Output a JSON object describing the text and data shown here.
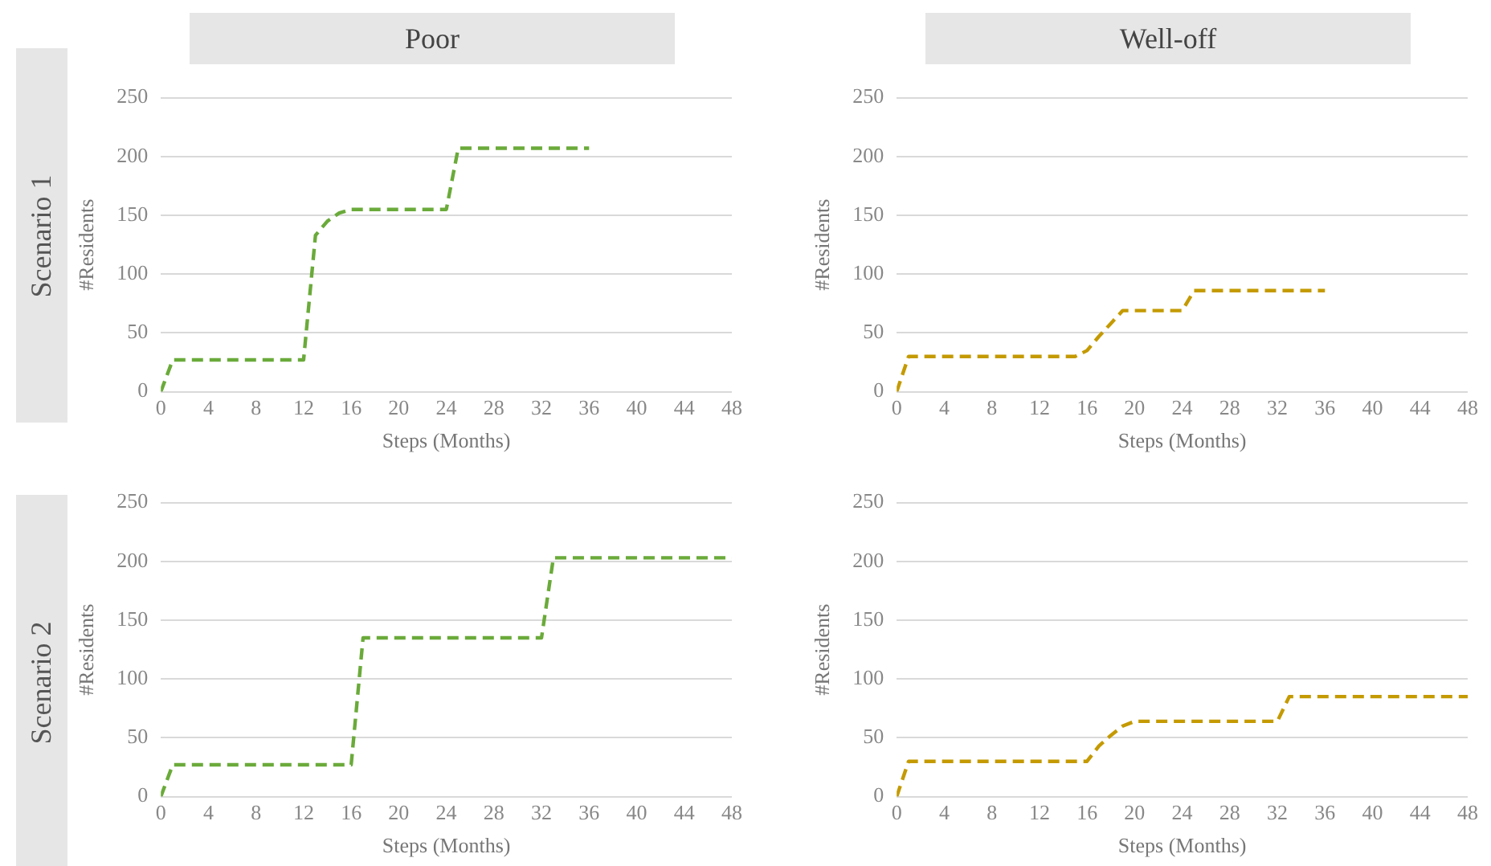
{
  "chart_data": [
    {
      "type": "line",
      "title": "Poor",
      "annotations": [
        "Scenario 1"
      ],
      "xlabel": "Steps (Months)",
      "ylabel": "#Residents",
      "xlim": [
        0,
        48
      ],
      "xticks": [
        0,
        4,
        8,
        12,
        16,
        20,
        24,
        28,
        32,
        36,
        40,
        44,
        48
      ],
      "ylim": [
        0,
        250
      ],
      "yticks": [
        0,
        50,
        100,
        150,
        200,
        250
      ],
      "grid": "y",
      "marker": "none",
      "line_style": "dashed",
      "legend": false,
      "series": [
        {
          "color": "#6aaa3a",
          "x": [
            0,
            1,
            12,
            13,
            14,
            15,
            16,
            24,
            25,
            36
          ],
          "values": [
            0,
            27,
            27,
            133,
            145,
            152,
            155,
            155,
            207,
            207
          ]
        }
      ]
    },
    {
      "type": "line",
      "title": "Well-off",
      "xlabel": "Steps (Months)",
      "ylabel": "#Residents",
      "xlim": [
        0,
        48
      ],
      "xticks": [
        0,
        4,
        8,
        12,
        16,
        20,
        24,
        28,
        32,
        36,
        40,
        44,
        48
      ],
      "ylim": [
        0,
        250
      ],
      "yticks": [
        0,
        50,
        100,
        150,
        200,
        250
      ],
      "grid": "y",
      "marker": "none",
      "line_style": "dashed",
      "legend": false,
      "series": [
        {
          "color": "#c49a00",
          "x": [
            0,
            1,
            15,
            16,
            17,
            18,
            19,
            24,
            25,
            36
          ],
          "values": [
            0,
            30,
            30,
            35,
            47,
            58,
            69,
            69,
            86,
            86
          ]
        }
      ]
    },
    {
      "type": "line",
      "annotations": [
        "Scenario 2"
      ],
      "xlabel": "Steps (Months)",
      "ylabel": "#Residents",
      "xlim": [
        0,
        48
      ],
      "xticks": [
        0,
        4,
        8,
        12,
        16,
        20,
        24,
        28,
        32,
        36,
        40,
        44,
        48
      ],
      "ylim": [
        0,
        250
      ],
      "yticks": [
        0,
        50,
        100,
        150,
        200,
        250
      ],
      "grid": "y",
      "marker": "none",
      "line_style": "dashed",
      "legend": false,
      "series": [
        {
          "color": "#6aaa3a",
          "x": [
            0,
            1,
            16,
            17,
            32,
            33,
            48
          ],
          "values": [
            0,
            27,
            27,
            135,
            135,
            203,
            203
          ]
        }
      ]
    },
    {
      "type": "line",
      "xlabel": "Steps (Months)",
      "ylabel": "#Residents",
      "xlim": [
        0,
        48
      ],
      "xticks": [
        0,
        4,
        8,
        12,
        16,
        20,
        24,
        28,
        32,
        36,
        40,
        44,
        48
      ],
      "ylim": [
        0,
        250
      ],
      "yticks": [
        0,
        50,
        100,
        150,
        200,
        250
      ],
      "grid": "y",
      "marker": "none",
      "line_style": "dashed",
      "legend": false,
      "series": [
        {
          "color": "#c49a00",
          "x": [
            0,
            1,
            16,
            17,
            18,
            19,
            20,
            32,
            33,
            48
          ],
          "values": [
            0,
            30,
            30,
            43,
            52,
            60,
            64,
            64,
            85,
            85
          ]
        }
      ]
    }
  ]
}
